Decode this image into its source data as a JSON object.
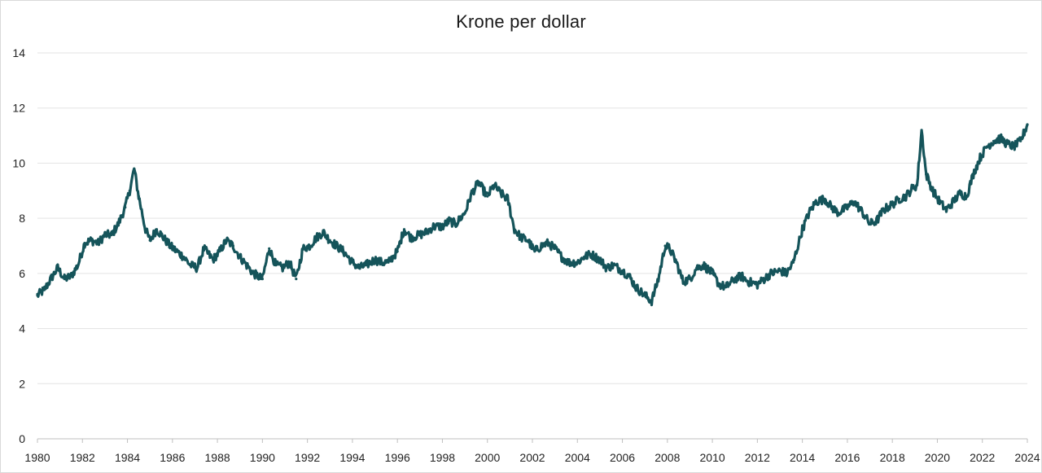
{
  "chart_data": {
    "type": "line",
    "title": "Krone per dollar",
    "xlabel": "",
    "ylabel": "",
    "xlim": [
      1980,
      2024
    ],
    "ylim": [
      0,
      14
    ],
    "y_ticks": [
      "0",
      "2",
      "4",
      "6",
      "8",
      "10",
      "12",
      "14"
    ],
    "x_ticks": [
      "1980",
      "1982",
      "1984",
      "1986",
      "1988",
      "1990",
      "1992",
      "1994",
      "1996",
      "1998",
      "2000",
      "2002",
      "2004",
      "2006",
      "2008",
      "2010",
      "2012",
      "2014",
      "2016",
      "2018",
      "2020",
      "2022",
      "2024"
    ],
    "grid": "horizontal",
    "legend": "none",
    "line_color": "#15545a",
    "series": [
      {
        "x": [
          1980.0,
          1980.3,
          1980.6,
          1980.9,
          1981.2,
          1981.5,
          1981.8,
          1982.1,
          1982.4,
          1982.7,
          1983.0,
          1983.3,
          1983.6,
          1983.9,
          1984.1,
          1984.3,
          1984.5,
          1984.8,
          1985.0,
          1985.3,
          1985.6,
          1985.9,
          1986.2,
          1986.5,
          1986.8,
          1987.1,
          1987.4,
          1987.8,
          1988.1,
          1988.4,
          1988.7,
          1989.0,
          1989.3,
          1989.6,
          1990.0,
          1990.3,
          1990.6,
          1990.9,
          1991.2,
          1991.5,
          1991.8,
          1992.1,
          1992.4,
          1992.7,
          1993.0,
          1993.3,
          1993.6,
          1994.0,
          1994.3,
          1994.6,
          1995.0,
          1995.3,
          1995.6,
          1996.0,
          1996.3,
          1996.6,
          1997.0,
          1997.3,
          1997.6,
          1998.0,
          1998.3,
          1998.6,
          1999.0,
          1999.3,
          1999.6,
          2000.0,
          2000.3,
          2000.6,
          2000.9,
          2001.2,
          2001.5,
          2001.8,
          2002.1,
          2002.4,
          2002.7,
          2003.0,
          2003.3,
          2003.6,
          2004.0,
          2004.3,
          2004.6,
          2005.0,
          2005.3,
          2005.6,
          2006.0,
          2006.3,
          2006.6,
          2007.0,
          2007.3,
          2007.6,
          2007.9,
          2008.1,
          2008.4,
          2008.7,
          2009.0,
          2009.3,
          2009.6,
          2010.0,
          2010.3,
          2010.6,
          2011.0,
          2011.3,
          2011.6,
          2012.0,
          2012.3,
          2012.6,
          2013.0,
          2013.3,
          2013.6,
          2014.0,
          2014.3,
          2014.6,
          2015.0,
          2015.3,
          2015.6,
          2016.0,
          2016.3,
          2016.6,
          2017.0,
          2017.3,
          2017.6,
          2018.0,
          2018.3,
          2018.6,
          2018.9,
          2019.1,
          2019.3,
          2019.5,
          2019.8,
          2020.1,
          2020.4,
          2020.7,
          2021.0,
          2021.3,
          2021.6,
          2021.9,
          2022.2,
          2022.5,
          2022.8,
          2023.1,
          2023.4,
          2023.7,
          2024.0
        ],
        "values": [
          5.2,
          5.4,
          5.8,
          6.2,
          5.8,
          5.9,
          6.3,
          7.1,
          7.2,
          7.1,
          7.4,
          7.4,
          7.8,
          8.4,
          9.0,
          9.8,
          8.8,
          7.6,
          7.2,
          7.6,
          7.3,
          7.0,
          6.8,
          6.6,
          6.3,
          6.2,
          6.9,
          6.5,
          6.8,
          7.2,
          7.0,
          6.6,
          6.3,
          6.0,
          5.8,
          6.9,
          6.3,
          6.2,
          6.4,
          5.8,
          6.9,
          7.0,
          7.3,
          7.5,
          7.2,
          7.0,
          6.8,
          6.4,
          6.2,
          6.3,
          6.5,
          6.4,
          6.4,
          6.8,
          7.6,
          7.3,
          7.4,
          7.5,
          7.7,
          7.7,
          7.9,
          7.8,
          8.2,
          8.9,
          9.3,
          8.8,
          9.2,
          8.9,
          8.7,
          7.6,
          7.3,
          7.2,
          6.8,
          7.0,
          7.1,
          6.9,
          6.6,
          6.4,
          6.4,
          6.6,
          6.7,
          6.5,
          6.2,
          6.3,
          6.1,
          5.9,
          5.5,
          5.2,
          5.0,
          5.8,
          7.0,
          6.9,
          6.4,
          5.7,
          5.8,
          6.2,
          6.3,
          6.0,
          5.6,
          5.5,
          5.8,
          5.9,
          5.7,
          5.6,
          5.8,
          6.0,
          6.1,
          6.0,
          6.4,
          7.6,
          8.2,
          8.6,
          8.7,
          8.4,
          8.2,
          8.4,
          8.6,
          8.3,
          7.8,
          7.9,
          8.3,
          8.5,
          8.7,
          8.8,
          9.1,
          9.2,
          11.2,
          9.6,
          9.0,
          8.6,
          8.3,
          8.6,
          8.9,
          8.8,
          9.6,
          10.2,
          10.6,
          10.8,
          10.9,
          10.7,
          10.6,
          10.8,
          11.4
        ],
        "name": ""
      }
    ]
  }
}
